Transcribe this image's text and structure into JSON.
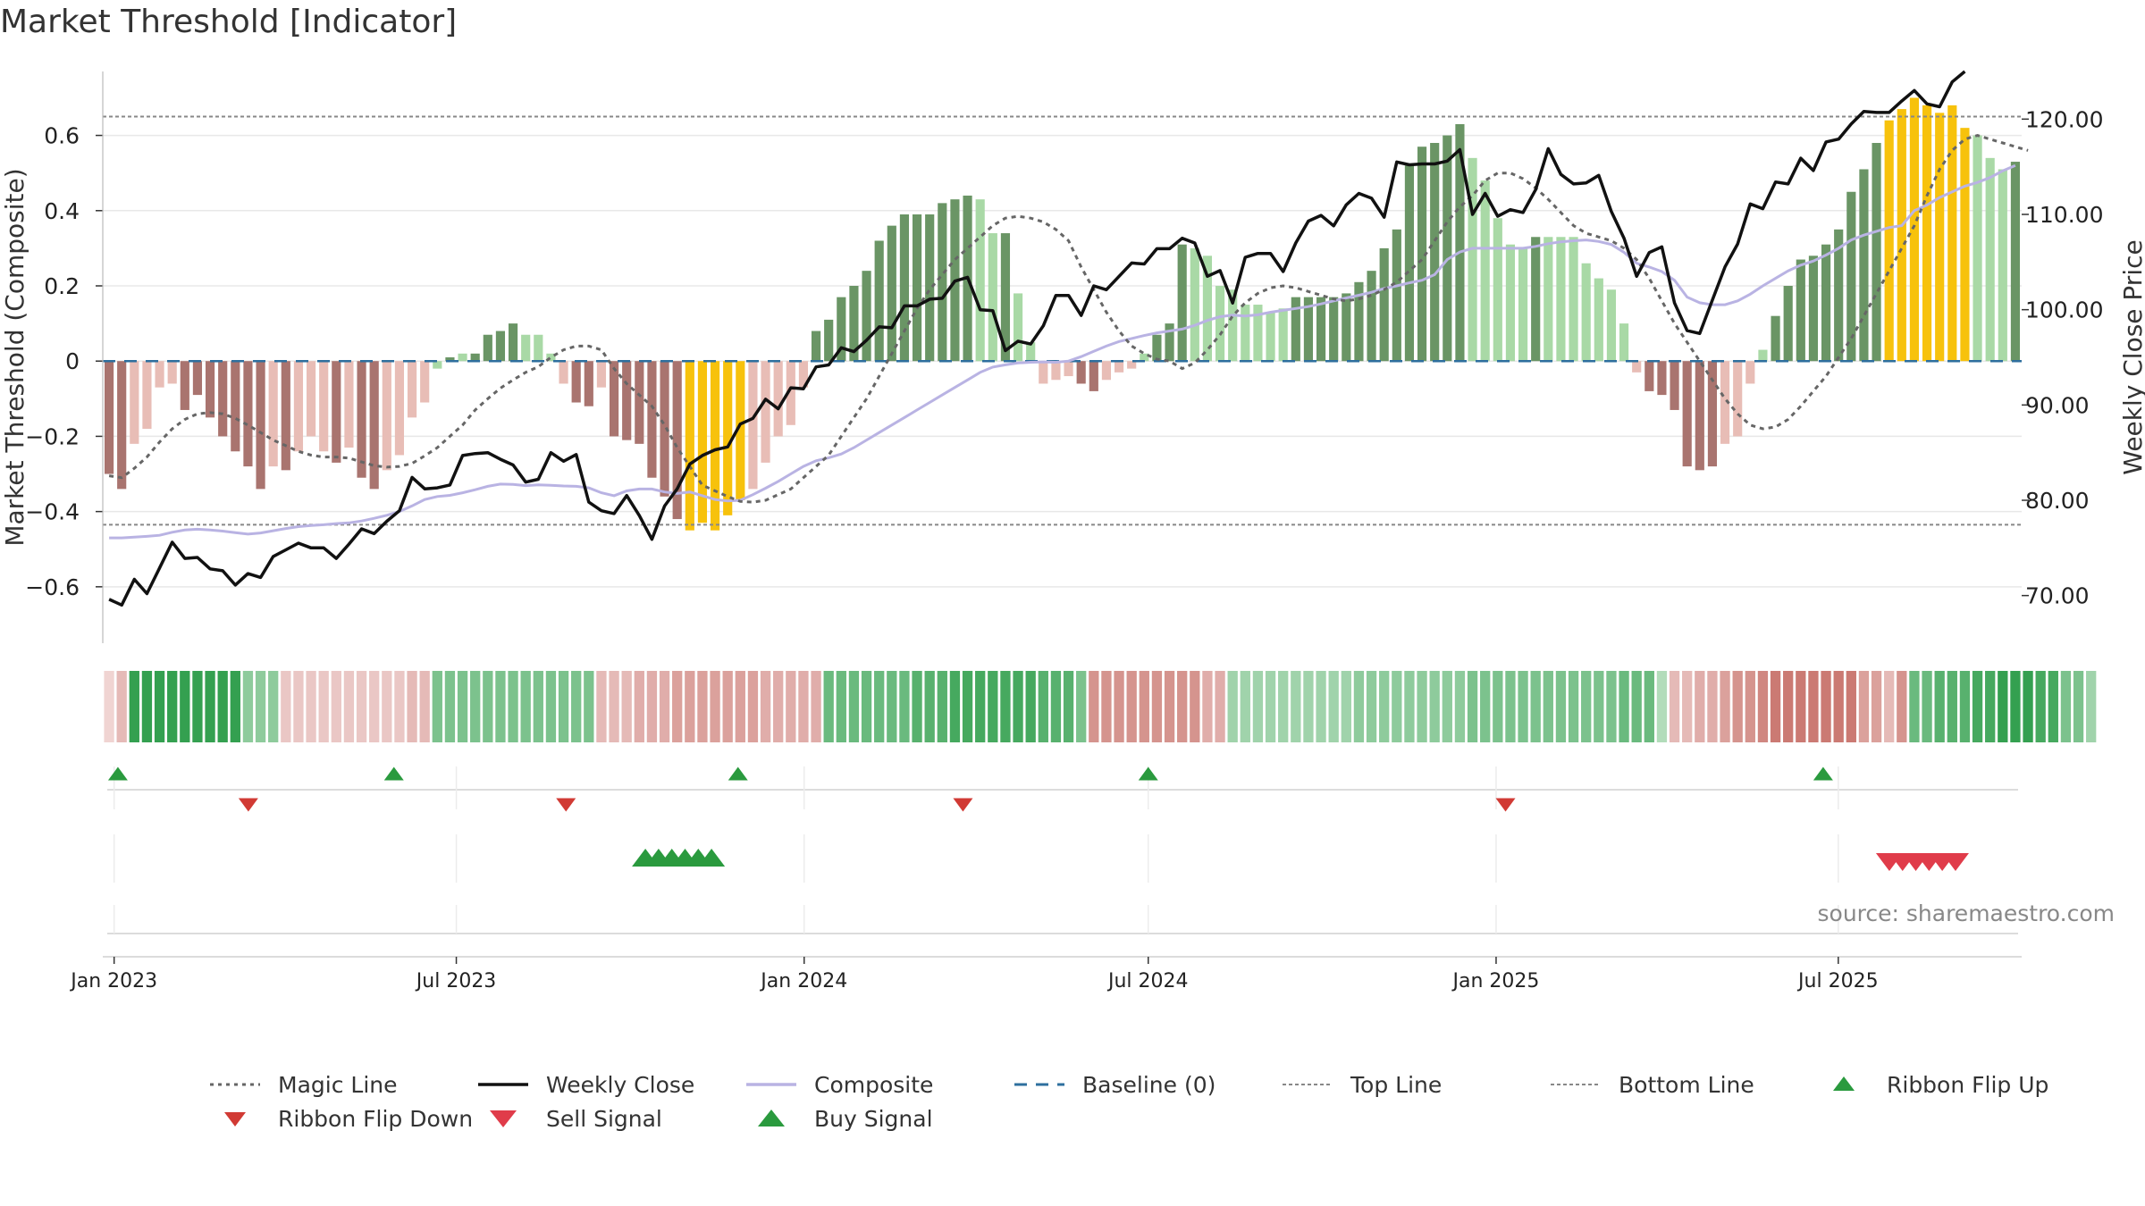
{
  "title": "Market Threshold [Indicator]",
  "source": "source: sharemaestro.com",
  "colors": {
    "bar_dark_green": "#6a9565",
    "bar_light_green": "#a9d9a6",
    "bar_dark_red": "#a9746f",
    "bar_light_red": "#e8bdb6",
    "bar_gold": "#f7c20c",
    "weekly_close": "#111111",
    "composite": "#b9b3e3",
    "magic_line": "#666666",
    "baseline": "#2e6f9e",
    "threshold_lines": "#888888",
    "ribbon_flip_up": "#2a9a3e",
    "ribbon_flip_down": "#d13a34",
    "sell_signal": "#e03c4a",
    "buy_signal": "#2a9a3e"
  },
  "chart_data": {
    "type": "bar",
    "title": "Market Threshold [Indicator]",
    "ylabel": "Market Threshold (Composite)",
    "y2label": "Weekly Close Price",
    "ylim": [
      -0.75,
      0.77
    ],
    "y2lim": [
      65,
      125
    ],
    "yticks": [
      0.6,
      0.4,
      0.2,
      0,
      -0.2,
      -0.4,
      -0.6
    ],
    "ytick_labels": [
      "0.6",
      "0.4",
      "0.2",
      "0",
      "−0.2",
      "−0.4",
      "−0.6"
    ],
    "y2ticks": [
      120,
      110,
      100,
      90,
      80,
      70
    ],
    "y2tick_labels": [
      "120.00",
      "110.00",
      "100.00",
      "90.00",
      "80.00",
      "70.00"
    ],
    "x_start": "2022-12-26",
    "x_end": "2025-10-06",
    "xticks": [
      "2023-01-01",
      "2023-07-01",
      "2024-01-01",
      "2024-07-01",
      "2025-01-01",
      "2025-07-01"
    ],
    "xtick_labels": [
      "Jan 2023",
      "Jul 2023",
      "Jan 2024",
      "Jul 2024",
      "Jan 2025",
      "Jul 2025"
    ],
    "top_line": 0.65,
    "bottom_line": -0.435,
    "grid": true,
    "legend_position": "bottom",
    "composite_bars": [
      -0.3,
      -0.34,
      -0.22,
      -0.18,
      -0.07,
      -0.06,
      -0.13,
      -0.09,
      -0.15,
      -0.2,
      -0.24,
      -0.28,
      -0.34,
      -0.28,
      -0.29,
      -0.24,
      -0.2,
      -0.24,
      -0.27,
      -0.23,
      -0.31,
      -0.34,
      -0.29,
      -0.25,
      -0.15,
      -0.11,
      -0.02,
      0.01,
      0.02,
      0.02,
      0.07,
      0.08,
      0.1,
      0.07,
      0.07,
      0.02,
      -0.06,
      -0.11,
      -0.12,
      -0.07,
      -0.2,
      -0.21,
      -0.22,
      -0.31,
      -0.36,
      -0.42,
      -0.45,
      -0.43,
      -0.45,
      -0.41,
      -0.37,
      -0.34,
      -0.27,
      -0.2,
      -0.17,
      -0.07,
      0.08,
      0.11,
      0.17,
      0.2,
      0.24,
      0.32,
      0.36,
      0.39,
      0.39,
      0.39,
      0.42,
      0.43,
      0.44,
      0.43,
      0.34,
      0.34,
      0.18,
      0.05,
      -0.06,
      -0.05,
      -0.04,
      -0.06,
      -0.08,
      -0.05,
      -0.03,
      -0.02,
      0.02,
      0.07,
      0.1,
      0.31,
      0.3,
      0.28,
      0.2,
      0.19,
      0.15,
      0.15,
      0.13,
      0.14,
      0.17,
      0.17,
      0.17,
      0.17,
      0.18,
      0.21,
      0.24,
      0.3,
      0.35,
      0.52,
      0.57,
      0.58,
      0.6,
      0.63,
      0.54,
      0.48,
      0.38,
      0.31,
      0.3,
      0.33,
      0.33,
      0.33,
      0.33,
      0.26,
      0.22,
      0.19,
      0.1,
      -0.03,
      -0.08,
      -0.09,
      -0.13,
      -0.28,
      -0.29,
      -0.28,
      -0.22,
      -0.2,
      -0.06,
      0.03,
      0.12,
      0.2,
      0.27,
      0.28,
      0.31,
      0.35,
      0.45,
      0.51,
      0.58,
      0.64,
      0.67,
      0.7,
      0.68,
      0.66,
      0.68,
      0.62,
      0.6,
      0.54,
      0.51,
      0.53
    ],
    "composite_bar_categories": [
      "dark_red",
      "dark_red",
      "light_red",
      "light_red",
      "light_red",
      "light_red",
      "dark_red",
      "dark_red",
      "dark_red",
      "dark_red",
      "dark_red",
      "dark_red",
      "dark_red",
      "light_red",
      "dark_red",
      "light_red",
      "light_red",
      "light_red",
      "dark_red",
      "light_red",
      "dark_red",
      "dark_red",
      "light_red",
      "light_red",
      "light_red",
      "light_red",
      "light_green",
      "dark_green",
      "light_green",
      "dark_green",
      "dark_green",
      "dark_green",
      "dark_green",
      "light_green",
      "light_green",
      "light_green",
      "light_red",
      "dark_red",
      "dark_red",
      "light_red",
      "dark_red",
      "dark_red",
      "dark_red",
      "dark_red",
      "dark_red",
      "dark_red",
      "gold",
      "gold",
      "gold",
      "gold",
      "gold",
      "light_red",
      "light_red",
      "light_red",
      "light_red",
      "light_red",
      "dark_green",
      "dark_green",
      "dark_green",
      "dark_green",
      "dark_green",
      "dark_green",
      "dark_green",
      "dark_green",
      "dark_green",
      "dark_green",
      "dark_green",
      "dark_green",
      "dark_green",
      "light_green",
      "light_green",
      "dark_green",
      "light_green",
      "light_green",
      "light_red",
      "light_red",
      "light_red",
      "dark_red",
      "dark_red",
      "light_red",
      "light_red",
      "light_red",
      "light_green",
      "dark_green",
      "dark_green",
      "dark_green",
      "light_green",
      "light_green",
      "light_green",
      "light_green",
      "light_green",
      "light_green",
      "light_green",
      "light_green",
      "dark_green",
      "dark_green",
      "dark_green",
      "dark_green",
      "dark_green",
      "dark_green",
      "dark_green",
      "dark_green",
      "dark_green",
      "dark_green",
      "dark_green",
      "dark_green",
      "dark_green",
      "dark_green",
      "light_green",
      "light_green",
      "light_green",
      "light_green",
      "light_green",
      "dark_green",
      "light_green",
      "light_green",
      "light_green",
      "light_green",
      "light_green",
      "light_green",
      "light_green",
      "light_red",
      "dark_red",
      "dark_red",
      "dark_red",
      "dark_red",
      "dark_red",
      "dark_red",
      "light_red",
      "light_red",
      "light_red",
      "light_green",
      "dark_green",
      "dark_green",
      "dark_green",
      "dark_green",
      "dark_green",
      "dark_green",
      "dark_green",
      "dark_green",
      "dark_green",
      "gold",
      "gold",
      "gold",
      "gold",
      "gold",
      "gold",
      "gold",
      "light_green",
      "light_green",
      "light_green",
      "dark_green"
    ],
    "weekly_close": [
      69.6,
      69.0,
      71.7,
      70.2,
      72.9,
      75.6,
      73.9,
      74.0,
      72.8,
      72.6,
      71.1,
      72.3,
      71.9,
      74.1,
      74.8,
      75.5,
      75.0,
      75.0,
      73.9,
      75.4,
      77.0,
      76.5,
      77.8,
      78.9,
      82.4,
      81.2,
      81.3,
      81.6,
      84.7,
      84.9,
      85.0,
      84.3,
      83.7,
      81.9,
      82.2,
      85.0,
      84.1,
      84.8,
      79.8,
      78.9,
      78.6,
      80.5,
      78.4,
      75.9,
      79.4,
      81.2,
      83.8,
      84.7,
      85.3,
      85.6,
      88.0,
      88.6,
      90.6,
      89.6,
      91.8,
      91.7,
      94.0,
      94.2,
      96.0,
      95.6,
      96.8,
      98.2,
      98.1,
      100.4,
      100.4,
      101.1,
      101.2,
      103.0,
      103.4,
      100.0,
      99.9,
      95.7,
      96.7,
      96.4,
      98.3,
      101.5,
      101.5,
      99.4,
      102.5,
      102.1,
      103.5,
      104.9,
      104.8,
      106.4,
      106.4,
      107.5,
      107.0,
      103.5,
      104.1,
      100.7,
      105.5,
      105.9,
      105.9,
      104.0,
      107.0,
      109.3,
      109.9,
      108.8,
      111.0,
      112.2,
      111.7,
      109.7,
      115.5,
      115.2,
      115.3,
      115.3,
      115.6,
      116.8,
      110.0,
      112.2,
      109.8,
      110.5,
      110.2,
      112.6,
      116.9,
      114.2,
      113.2,
      113.3,
      114.1,
      110.3,
      107.5,
      103.5,
      106.0,
      106.6,
      100.7,
      97.8,
      97.5,
      101.0,
      104.5,
      106.9,
      111.1,
      110.6,
      113.4,
      113.2,
      115.9,
      114.6,
      117.6,
      117.9,
      119.5,
      120.8,
      120.7,
      120.7,
      121.9,
      123.0,
      121.6,
      121.3,
      123.9,
      125.0
    ],
    "composite_line": [
      -0.47,
      -0.47,
      -0.468,
      -0.466,
      -0.463,
      -0.455,
      -0.449,
      -0.447,
      -0.449,
      -0.452,
      -0.456,
      -0.46,
      -0.457,
      -0.451,
      -0.445,
      -0.44,
      -0.437,
      -0.435,
      -0.432,
      -0.43,
      -0.425,
      -0.418,
      -0.41,
      -0.4,
      -0.385,
      -0.368,
      -0.36,
      -0.357,
      -0.35,
      -0.342,
      -0.333,
      -0.327,
      -0.328,
      -0.331,
      -0.329,
      -0.33,
      -0.332,
      -0.333,
      -0.337,
      -0.35,
      -0.358,
      -0.345,
      -0.34,
      -0.34,
      -0.348,
      -0.352,
      -0.348,
      -0.358,
      -0.368,
      -0.372,
      -0.37,
      -0.355,
      -0.338,
      -0.32,
      -0.3,
      -0.28,
      -0.265,
      -0.257,
      -0.247,
      -0.23,
      -0.21,
      -0.19,
      -0.17,
      -0.15,
      -0.13,
      -0.11,
      -0.09,
      -0.07,
      -0.05,
      -0.03,
      -0.016,
      -0.01,
      -0.005,
      -0.003,
      -0.002,
      -0.003,
      0.0,
      0.012,
      0.026,
      0.04,
      0.052,
      0.06,
      0.068,
      0.075,
      0.08,
      0.085,
      0.095,
      0.108,
      0.118,
      0.122,
      0.12,
      0.123,
      0.13,
      0.135,
      0.14,
      0.145,
      0.152,
      0.16,
      0.168,
      0.175,
      0.183,
      0.193,
      0.2,
      0.208,
      0.215,
      0.23,
      0.27,
      0.29,
      0.3,
      0.3,
      0.3,
      0.3,
      0.3,
      0.305,
      0.312,
      0.317,
      0.32,
      0.322,
      0.318,
      0.31,
      0.289,
      0.26,
      0.25,
      0.238,
      0.215,
      0.17,
      0.155,
      0.15,
      0.15,
      0.16,
      0.178,
      0.2,
      0.22,
      0.24,
      0.255,
      0.266,
      0.282,
      0.3,
      0.322,
      0.335,
      0.345,
      0.355,
      0.36,
      0.4,
      0.415,
      0.435,
      0.45,
      0.465,
      0.475,
      0.488,
      0.506,
      0.52
    ],
    "magic_line": [
      -0.305,
      -0.31,
      -0.285,
      -0.255,
      -0.215,
      -0.18,
      -0.155,
      -0.14,
      -0.137,
      -0.14,
      -0.152,
      -0.17,
      -0.19,
      -0.21,
      -0.225,
      -0.24,
      -0.25,
      -0.255,
      -0.255,
      -0.258,
      -0.268,
      -0.278,
      -0.282,
      -0.28,
      -0.272,
      -0.252,
      -0.23,
      -0.2,
      -0.17,
      -0.13,
      -0.1,
      -0.072,
      -0.05,
      -0.03,
      -0.015,
      0.01,
      0.03,
      0.04,
      0.04,
      0.03,
      -0.02,
      -0.06,
      -0.09,
      -0.12,
      -0.17,
      -0.23,
      -0.28,
      -0.33,
      -0.345,
      -0.36,
      -0.373,
      -0.375,
      -0.37,
      -0.355,
      -0.34,
      -0.31,
      -0.28,
      -0.25,
      -0.2,
      -0.15,
      -0.1,
      -0.04,
      0.02,
      0.08,
      0.14,
      0.19,
      0.23,
      0.27,
      0.3,
      0.33,
      0.36,
      0.38,
      0.385,
      0.38,
      0.37,
      0.35,
      0.32,
      0.25,
      0.19,
      0.13,
      0.08,
      0.04,
      0.02,
      0.005,
      0.0,
      -0.02,
      -0.005,
      0.03,
      0.07,
      0.12,
      0.155,
      0.18,
      0.195,
      0.2,
      0.195,
      0.185,
      0.175,
      0.165,
      0.16,
      0.165,
      0.175,
      0.19,
      0.21,
      0.24,
      0.27,
      0.32,
      0.37,
      0.41,
      0.44,
      0.48,
      0.5,
      0.5,
      0.485,
      0.46,
      0.43,
      0.395,
      0.36,
      0.34,
      0.33,
      0.32,
      0.3,
      0.27,
      0.22,
      0.16,
      0.1,
      0.05,
      0.0,
      -0.05,
      -0.1,
      -0.14,
      -0.17,
      -0.18,
      -0.175,
      -0.155,
      -0.12,
      -0.08,
      -0.04,
      0.01,
      0.06,
      0.12,
      0.18,
      0.24,
      0.3,
      0.36,
      0.44,
      0.51,
      0.56,
      0.59,
      0.6,
      0.59,
      0.58,
      0.57,
      0.56
    ],
    "ribbon": [
      0.1,
      0.3,
      1,
      1,
      1,
      1,
      1,
      1,
      1,
      1,
      1,
      0.5,
      0.5,
      0.5,
      0.2,
      0.2,
      0.2,
      0.2,
      0.2,
      0.2,
      0.2,
      0.2,
      0.2,
      0.2,
      0.3,
      0.3,
      0.6,
      0.6,
      0.6,
      0.6,
      0.6,
      0.6,
      0.6,
      0.6,
      0.6,
      0.6,
      0.6,
      0.6,
      0.6,
      0.3,
      0.3,
      0.3,
      0.4,
      0.4,
      0.4,
      0.5,
      0.5,
      0.5,
      0.5,
      0.5,
      0.5,
      0.5,
      0.4,
      0.4,
      0.4,
      0.4,
      0.4,
      0.7,
      0.7,
      0.7,
      0.7,
      0.7,
      0.7,
      0.7,
      0.8,
      0.8,
      0.8,
      0.9,
      0.9,
      0.9,
      0.9,
      0.9,
      0.9,
      0.9,
      0.8,
      0.8,
      0.8,
      0.6,
      0.6,
      0.6,
      0.6,
      0.6,
      0.6,
      0.6,
      0.6,
      0.6,
      0.6,
      0.4,
      0.4,
      0.4,
      0.4,
      0.4,
      0.4,
      0.4,
      0.4,
      0.4,
      0.4,
      0.4,
      0.4,
      0.5,
      0.5,
      0.5,
      0.5,
      0.5,
      0.5,
      0.5,
      0.5,
      0.5,
      0.6,
      0.6,
      0.6,
      0.6,
      0.6,
      0.6,
      0.6,
      0.6,
      0.6,
      0.6,
      0.6,
      0.6,
      0.7,
      0.7,
      0.7,
      0.3,
      0.3,
      0.3,
      0.4,
      0.4,
      0.5,
      0.6,
      0.6,
      0.7,
      0.8,
      0.8,
      0.8,
      0.8,
      0.8,
      0.8,
      0.8,
      0.5,
      0.5,
      0.3,
      0.6,
      0.7,
      0.7,
      0.8,
      0.8,
      0.8,
      0.9,
      0.9,
      1,
      1,
      1,
      0.9,
      0.9,
      0.6,
      0.6,
      0.4
    ],
    "ribbon_sign": [
      -1,
      -1,
      1,
      1,
      1,
      1,
      1,
      1,
      1,
      1,
      1,
      1,
      1,
      1,
      -1,
      -1,
      -1,
      -1,
      -1,
      -1,
      -1,
      -1,
      -1,
      -1,
      -1,
      -1,
      1,
      1,
      1,
      1,
      1,
      1,
      1,
      1,
      1,
      1,
      1,
      1,
      1,
      -1,
      -1,
      -1,
      -1,
      -1,
      -1,
      -1,
      -1,
      -1,
      -1,
      -1,
      -1,
      -1,
      -1,
      -1,
      -1,
      -1,
      -1,
      1,
      1,
      1,
      1,
      1,
      1,
      1,
      1,
      1,
      1,
      1,
      1,
      1,
      1,
      1,
      1,
      1,
      1,
      1,
      1,
      1,
      -1,
      -1,
      -1,
      -1,
      -1,
      -1,
      -1,
      -1,
      -1,
      -1,
      -1,
      1,
      1,
      1,
      1,
      1,
      1,
      1,
      1,
      1,
      1,
      1,
      1,
      1,
      1,
      1,
      1,
      1,
      1,
      1,
      1,
      1,
      1,
      1,
      1,
      1,
      1,
      1,
      1,
      1,
      1,
      1,
      1,
      1,
      1,
      1,
      -1,
      -1,
      -1,
      -1,
      -1,
      -1,
      -1,
      -1,
      -1,
      -1,
      -1,
      -1,
      -1,
      -1,
      -1,
      -1,
      -1,
      -1,
      -1,
      1,
      1,
      1,
      1,
      1,
      1,
      1,
      1,
      1,
      1,
      1,
      1,
      1,
      1,
      1,
      1,
      1,
      1,
      1
    ],
    "ribbon_flip_up_dates": [
      "2023-01-03",
      "2023-05-29",
      "2023-11-27",
      "2024-07-01",
      "2025-06-23"
    ],
    "ribbon_flip_down_dates": [
      "2023-03-13",
      "2023-08-28",
      "2024-03-25",
      "2025-01-06"
    ],
    "buy_signal_dates": [
      "2023-10-09",
      "2023-10-16",
      "2023-10-23",
      "2023-10-30",
      "2023-11-06",
      "2023-11-13"
    ],
    "sell_signal_dates": [
      "2025-07-28",
      "2025-08-04",
      "2025-08-11",
      "2025-08-18",
      "2025-08-25",
      "2025-09-01"
    ]
  },
  "legend": {
    "magic_line": "Magic Line",
    "weekly_close": "Weekly Close",
    "composite": "Composite",
    "baseline": "Baseline (0)",
    "top_line": "Top Line",
    "bottom_line": "Bottom Line",
    "ribbon_flip_up": "Ribbon Flip Up",
    "ribbon_flip_down": "Ribbon Flip Down",
    "sell_signal": "Sell Signal",
    "buy_signal": "Buy Signal"
  }
}
